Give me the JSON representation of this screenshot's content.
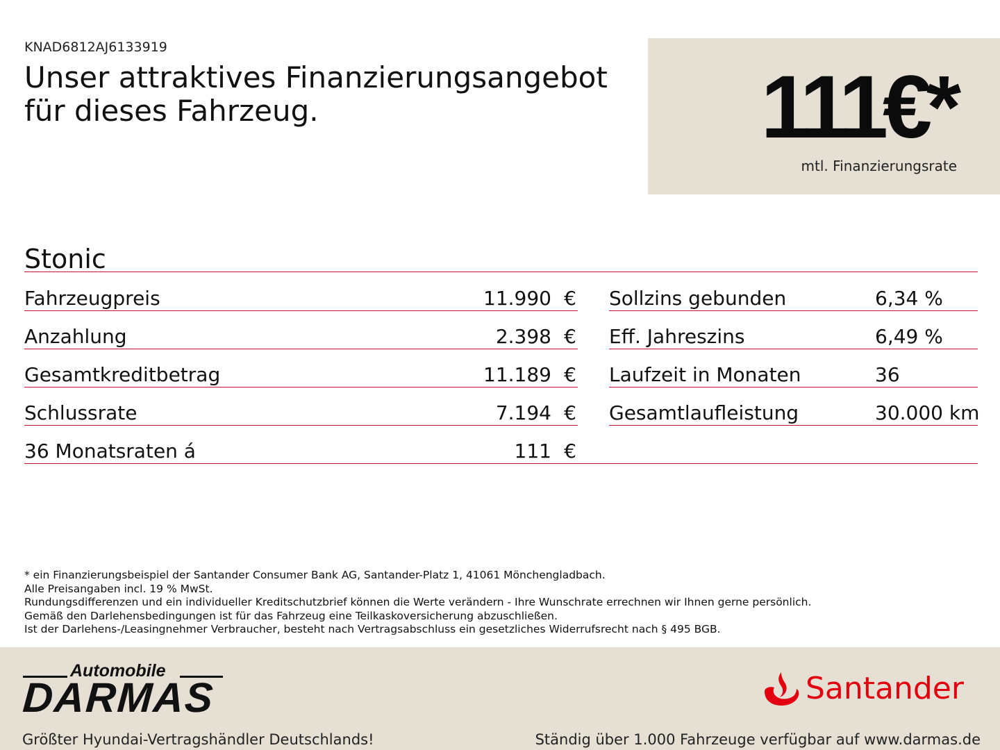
{
  "vin": "KNAD6812AJ6133919",
  "headline": "Unser attraktives Finanzierungsangebot für dieses Fahrzeug.",
  "price": {
    "amount": "111€*",
    "subtitle": "mtl. Finanzierungsrate"
  },
  "model": "Stonic",
  "left_rows": [
    {
      "label": "Fahrzeugpreis",
      "value": "11.990",
      "currency": "€"
    },
    {
      "label": "Anzahlung",
      "value": "2.398",
      "currency": "€"
    },
    {
      "label": "Gesamtkreditbetrag",
      "value": "11.189",
      "currency": "€"
    },
    {
      "label": "Schlussrate",
      "value": "7.194",
      "currency": "€"
    },
    {
      "label": "36 Monatsraten á",
      "value": "111",
      "currency": "€"
    }
  ],
  "right_rows": [
    {
      "label": "Sollzins gebunden",
      "value": "6,34 %"
    },
    {
      "label": "Eff. Jahreszins",
      "value": "6,49 %"
    },
    {
      "label": "Laufzeit in Monaten",
      "value": "36"
    },
    {
      "label": "Gesamtlaufleistung",
      "value": "30.000 km"
    }
  ],
  "disclaimer": [
    "* ein Finanzierungsbeispiel der Santander Consumer Bank AG, Santander-Platz 1, 41061 Mönchengladbach.",
    "Alle Preisangaben incl. 19 % MwSt.",
    "Rundungsdifferenzen und ein individueller Kreditschutzbrief können die Werte verändern - Ihre Wunschrate errechnen wir Ihnen gerne persönlich.",
    "Gemäß den Darlehensbedingungen ist für das Fahrzeug eine Teilkaskoversicherung abzuschließen.",
    "Ist der Darlehens-/Leasingnehmer Verbraucher, besteht nach Vertragsabschluss ein gesetzliches Widerrufsrecht nach § 495 BGB."
  ],
  "footer": {
    "darmas_top": "Automobile",
    "darmas_main": "DARMAS",
    "santander": "Santander",
    "left_text": "Größter Hyundai-Vertragshändler Deutschlands!",
    "right_text": "Ständig über 1.000 Fahrzeuge verfügbar auf www.darmas.de"
  },
  "colors": {
    "accent_red": "#c8102e",
    "santander_red": "#e3000f",
    "beige": "#e6dfd4"
  }
}
